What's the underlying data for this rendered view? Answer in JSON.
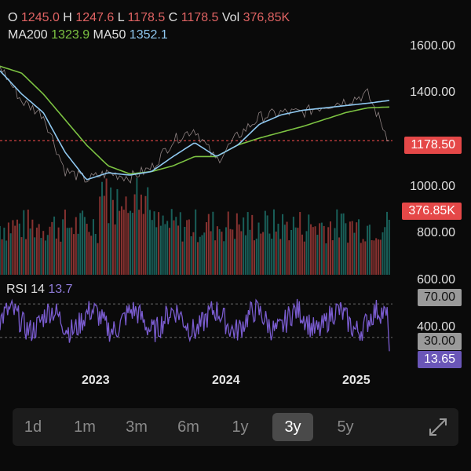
{
  "legend": {
    "o_label": "O",
    "o_value": "1245.0",
    "h_label": "H",
    "h_value": "1247.6",
    "l_label": "L",
    "l_value": "1178.5",
    "c_label": "C",
    "c_value": "1178.5",
    "vol_label": "Vol",
    "vol_value": "376,85K",
    "ma200_label": "MA200",
    "ma200_value": "1323.9",
    "ma50_label": "MA50",
    "ma50_value": "1352.1"
  },
  "price_axis": [
    "1600.00",
    "1400.00",
    "1000.00",
    "800.00",
    "600.00",
    "400.00"
  ],
  "tags": {
    "last_price": "1178.50",
    "volume": "376.85K",
    "rsi_upper": "70.00",
    "rsi_lower": "30.00",
    "rsi_current": "13.65"
  },
  "rsi": {
    "label": "RSI 14",
    "value": "13.7"
  },
  "x_axis": [
    "2023",
    "2024",
    "2025"
  ],
  "ranges": [
    {
      "label": "1d",
      "active": false
    },
    {
      "label": "1m",
      "active": false
    },
    {
      "label": "3m",
      "active": false
    },
    {
      "label": "6m",
      "active": false
    },
    {
      "label": "1y",
      "active": false
    },
    {
      "label": "3y",
      "active": true
    },
    {
      "label": "5y",
      "active": false
    }
  ],
  "icons": {
    "expand": "expand-icon"
  },
  "colors": {
    "up": "#26a69a",
    "down": "#ef5350",
    "ma200": "#7cc242",
    "ma50": "#8fc8f0",
    "rsi": "#7a5cd0",
    "last_price_line": "#e54848"
  },
  "chart_data": {
    "type": "line",
    "price_ylim": [
      600,
      1650
    ],
    "last_price": 1178.5,
    "rsi_levels": [
      70,
      30
    ],
    "rsi_last": 13.65,
    "volume_last": "376.85K",
    "x": [
      "2022-05",
      "2022-07",
      "2022-09",
      "2022-11",
      "2023-01",
      "2023-03",
      "2023-05",
      "2023-07",
      "2023-09",
      "2023-11",
      "2024-01",
      "2024-03",
      "2024-05",
      "2024-07",
      "2024-09",
      "2024-11",
      "2025-01",
      "2025-03",
      "2025-04"
    ],
    "series": [
      {
        "name": "MA200",
        "values": [
          1500,
          1470,
          1380,
          1270,
          1160,
          1070,
          1035,
          1045,
          1070,
          1110,
          1110,
          1160,
          1190,
          1215,
          1240,
          1270,
          1300,
          1320,
          1323.9
        ]
      },
      {
        "name": "MA50",
        "values": [
          1480,
          1380,
          1300,
          1130,
          1010,
          1040,
          1030,
          1045,
          1110,
          1170,
          1110,
          1160,
          1250,
          1290,
          1310,
          1320,
          1330,
          1340,
          1352.1
        ]
      },
      {
        "name": "Price",
        "values": [
          1500,
          1350,
          1290,
          1050,
          1010,
          1040,
          1020,
          1060,
          1180,
          1230,
          1090,
          1200,
          1280,
          1300,
          1300,
          1330,
          1350,
          1380,
          1178.5
        ]
      }
    ]
  }
}
